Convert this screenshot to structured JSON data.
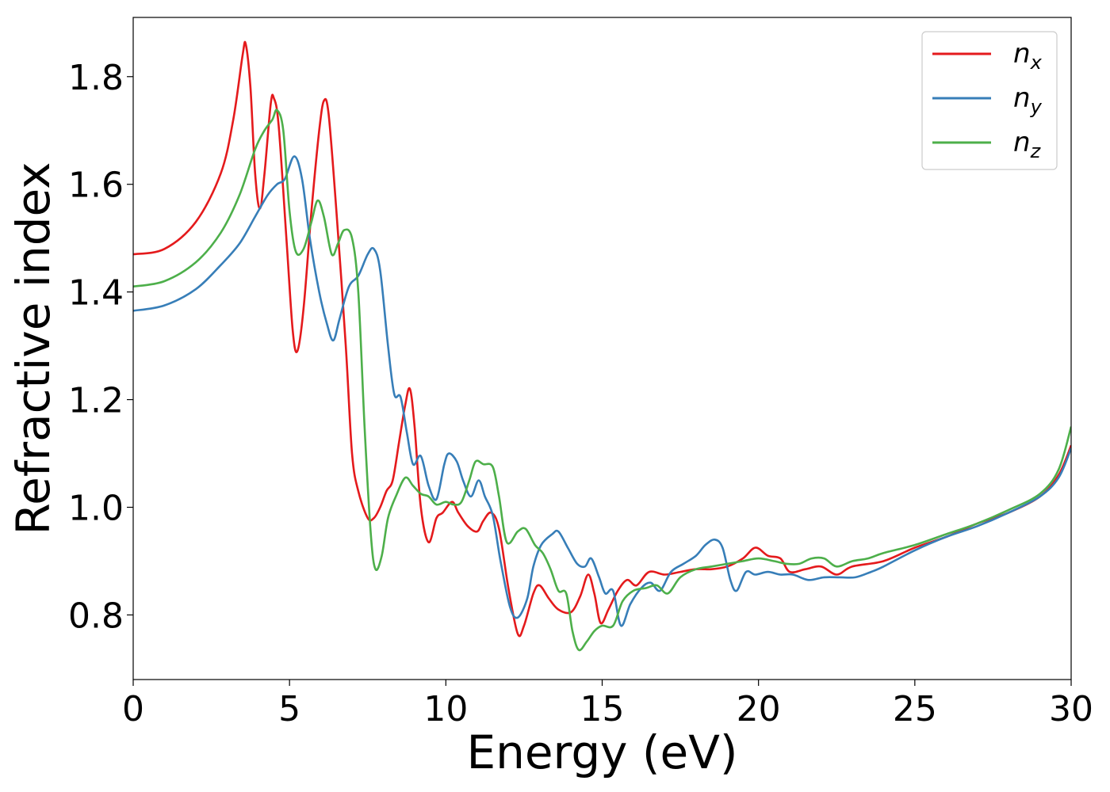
{
  "chart_data": {
    "type": "line",
    "title": "",
    "xlabel": "Energy (eV)",
    "ylabel": "Refractive index",
    "xlim": [
      0,
      30
    ],
    "ylim": [
      0.68,
      1.91
    ],
    "x_ticks": [
      0,
      5,
      10,
      15,
      20,
      25,
      30
    ],
    "y_ticks": [
      0.8,
      1.0,
      1.2,
      1.4,
      1.6,
      1.8
    ],
    "grid": false,
    "legend_position": "top-right",
    "series": [
      {
        "name": "n_x",
        "label_main": "n",
        "label_sub": "x",
        "color": "#e41a1c",
        "points": [
          [
            0,
            1.47
          ],
          [
            1,
            1.48
          ],
          [
            2,
            1.53
          ],
          [
            2.8,
            1.62
          ],
          [
            3.2,
            1.72
          ],
          [
            3.5,
            1.84
          ],
          [
            3.6,
            1.86
          ],
          [
            3.75,
            1.78
          ],
          [
            3.9,
            1.62
          ],
          [
            4.05,
            1.555
          ],
          [
            4.2,
            1.62
          ],
          [
            4.4,
            1.75
          ],
          [
            4.5,
            1.76
          ],
          [
            4.65,
            1.71
          ],
          [
            4.9,
            1.5
          ],
          [
            5.1,
            1.33
          ],
          [
            5.25,
            1.29
          ],
          [
            5.45,
            1.37
          ],
          [
            5.7,
            1.55
          ],
          [
            5.95,
            1.7
          ],
          [
            6.1,
            1.755
          ],
          [
            6.25,
            1.73
          ],
          [
            6.5,
            1.55
          ],
          [
            6.8,
            1.3
          ],
          [
            7.0,
            1.1
          ],
          [
            7.2,
            1.03
          ],
          [
            7.5,
            0.98
          ],
          [
            7.7,
            0.98
          ],
          [
            7.9,
            1.0
          ],
          [
            8.1,
            1.03
          ],
          [
            8.3,
            1.05
          ],
          [
            8.5,
            1.12
          ],
          [
            8.7,
            1.19
          ],
          [
            8.85,
            1.22
          ],
          [
            9.0,
            1.15
          ],
          [
            9.2,
            1.0
          ],
          [
            9.45,
            0.935
          ],
          [
            9.7,
            0.98
          ],
          [
            9.9,
            0.99
          ],
          [
            10.2,
            1.01
          ],
          [
            10.4,
            0.99
          ],
          [
            10.7,
            0.965
          ],
          [
            11.0,
            0.955
          ],
          [
            11.2,
            0.975
          ],
          [
            11.45,
            0.99
          ],
          [
            11.7,
            0.96
          ],
          [
            12.0,
            0.85
          ],
          [
            12.3,
            0.765
          ],
          [
            12.5,
            0.78
          ],
          [
            12.8,
            0.84
          ],
          [
            13.0,
            0.855
          ],
          [
            13.3,
            0.83
          ],
          [
            13.6,
            0.81
          ],
          [
            14.0,
            0.805
          ],
          [
            14.3,
            0.835
          ],
          [
            14.55,
            0.875
          ],
          [
            14.75,
            0.84
          ],
          [
            14.95,
            0.785
          ],
          [
            15.2,
            0.81
          ],
          [
            15.5,
            0.845
          ],
          [
            15.8,
            0.865
          ],
          [
            16.1,
            0.855
          ],
          [
            16.5,
            0.88
          ],
          [
            17,
            0.875
          ],
          [
            17.5,
            0.88
          ],
          [
            18,
            0.885
          ],
          [
            18.5,
            0.885
          ],
          [
            19,
            0.89
          ],
          [
            19.5,
            0.905
          ],
          [
            19.9,
            0.925
          ],
          [
            20.3,
            0.91
          ],
          [
            20.7,
            0.905
          ],
          [
            21.0,
            0.88
          ],
          [
            21.5,
            0.885
          ],
          [
            22.0,
            0.89
          ],
          [
            22.5,
            0.875
          ],
          [
            23.0,
            0.89
          ],
          [
            24,
            0.9
          ],
          [
            25,
            0.925
          ],
          [
            26,
            0.945
          ],
          [
            27,
            0.97
          ],
          [
            28,
            0.99
          ],
          [
            29,
            1.02
          ],
          [
            29.6,
            1.06
          ],
          [
            30,
            1.115
          ]
        ]
      },
      {
        "name": "n_y",
        "label_main": "n",
        "label_sub": "y",
        "color": "#377eb8",
        "points": [
          [
            0,
            1.365
          ],
          [
            1,
            1.375
          ],
          [
            2,
            1.405
          ],
          [
            2.8,
            1.45
          ],
          [
            3.4,
            1.49
          ],
          [
            3.9,
            1.54
          ],
          [
            4.3,
            1.58
          ],
          [
            4.6,
            1.6
          ],
          [
            4.85,
            1.61
          ],
          [
            5.15,
            1.652
          ],
          [
            5.4,
            1.61
          ],
          [
            5.65,
            1.5
          ],
          [
            5.95,
            1.4
          ],
          [
            6.2,
            1.34
          ],
          [
            6.4,
            1.31
          ],
          [
            6.6,
            1.35
          ],
          [
            6.9,
            1.41
          ],
          [
            7.2,
            1.43
          ],
          [
            7.5,
            1.47
          ],
          [
            7.7,
            1.48
          ],
          [
            7.9,
            1.44
          ],
          [
            8.15,
            1.3
          ],
          [
            8.35,
            1.21
          ],
          [
            8.55,
            1.205
          ],
          [
            8.75,
            1.14
          ],
          [
            8.95,
            1.08
          ],
          [
            9.2,
            1.095
          ],
          [
            9.45,
            1.04
          ],
          [
            9.7,
            1.015
          ],
          [
            9.95,
            1.08
          ],
          [
            10.1,
            1.1
          ],
          [
            10.35,
            1.085
          ],
          [
            10.55,
            1.05
          ],
          [
            10.8,
            1.02
          ],
          [
            11.05,
            1.05
          ],
          [
            11.25,
            1.02
          ],
          [
            11.5,
            0.985
          ],
          [
            11.75,
            0.9
          ],
          [
            12.05,
            0.815
          ],
          [
            12.3,
            0.795
          ],
          [
            12.6,
            0.83
          ],
          [
            12.8,
            0.89
          ],
          [
            13.05,
            0.93
          ],
          [
            13.4,
            0.95
          ],
          [
            13.6,
            0.955
          ],
          [
            13.9,
            0.925
          ],
          [
            14.2,
            0.895
          ],
          [
            14.45,
            0.89
          ],
          [
            14.65,
            0.905
          ],
          [
            14.9,
            0.87
          ],
          [
            15.1,
            0.84
          ],
          [
            15.35,
            0.845
          ],
          [
            15.6,
            0.78
          ],
          [
            15.9,
            0.82
          ],
          [
            16.25,
            0.85
          ],
          [
            16.55,
            0.86
          ],
          [
            16.85,
            0.845
          ],
          [
            17.2,
            0.88
          ],
          [
            17.6,
            0.895
          ],
          [
            18.0,
            0.91
          ],
          [
            18.3,
            0.93
          ],
          [
            18.6,
            0.94
          ],
          [
            18.85,
            0.925
          ],
          [
            19.1,
            0.865
          ],
          [
            19.3,
            0.845
          ],
          [
            19.6,
            0.88
          ],
          [
            19.9,
            0.875
          ],
          [
            20.3,
            0.88
          ],
          [
            20.7,
            0.875
          ],
          [
            21.1,
            0.875
          ],
          [
            21.6,
            0.865
          ],
          [
            22.1,
            0.87
          ],
          [
            22.6,
            0.87
          ],
          [
            23.1,
            0.87
          ],
          [
            23.6,
            0.88
          ],
          [
            24,
            0.89
          ],
          [
            25,
            0.92
          ],
          [
            26,
            0.945
          ],
          [
            27,
            0.965
          ],
          [
            28,
            0.99
          ],
          [
            29,
            1.02
          ],
          [
            29.6,
            1.055
          ],
          [
            30,
            1.11
          ]
        ]
      },
      {
        "name": "n_z",
        "label_main": "n",
        "label_sub": "z",
        "color": "#4daf4a",
        "points": [
          [
            0,
            1.41
          ],
          [
            1,
            1.42
          ],
          [
            2,
            1.455
          ],
          [
            2.8,
            1.51
          ],
          [
            3.4,
            1.58
          ],
          [
            3.9,
            1.665
          ],
          [
            4.2,
            1.7
          ],
          [
            4.45,
            1.72
          ],
          [
            4.6,
            1.738
          ],
          [
            4.8,
            1.7
          ],
          [
            5.0,
            1.55
          ],
          [
            5.2,
            1.475
          ],
          [
            5.45,
            1.48
          ],
          [
            5.7,
            1.53
          ],
          [
            5.9,
            1.57
          ],
          [
            6.1,
            1.54
          ],
          [
            6.35,
            1.47
          ],
          [
            6.55,
            1.49
          ],
          [
            6.75,
            1.515
          ],
          [
            7.0,
            1.5
          ],
          [
            7.2,
            1.4
          ],
          [
            7.4,
            1.15
          ],
          [
            7.6,
            0.95
          ],
          [
            7.75,
            0.885
          ],
          [
            7.95,
            0.91
          ],
          [
            8.15,
            0.98
          ],
          [
            8.4,
            1.02
          ],
          [
            8.7,
            1.055
          ],
          [
            8.95,
            1.04
          ],
          [
            9.2,
            1.025
          ],
          [
            9.45,
            1.02
          ],
          [
            9.7,
            1.005
          ],
          [
            10.0,
            1.01
          ],
          [
            10.25,
            1.005
          ],
          [
            10.5,
            1.01
          ],
          [
            10.75,
            1.05
          ],
          [
            10.95,
            1.085
          ],
          [
            11.2,
            1.08
          ],
          [
            11.5,
            1.075
          ],
          [
            11.7,
            1.02
          ],
          [
            11.95,
            0.935
          ],
          [
            12.3,
            0.955
          ],
          [
            12.55,
            0.96
          ],
          [
            12.85,
            0.93
          ],
          [
            13.1,
            0.915
          ],
          [
            13.35,
            0.885
          ],
          [
            13.6,
            0.845
          ],
          [
            13.85,
            0.84
          ],
          [
            14.05,
            0.77
          ],
          [
            14.25,
            0.735
          ],
          [
            14.5,
            0.75
          ],
          [
            14.75,
            0.77
          ],
          [
            15.0,
            0.78
          ],
          [
            15.35,
            0.78
          ],
          [
            15.65,
            0.825
          ],
          [
            16.0,
            0.845
          ],
          [
            16.4,
            0.85
          ],
          [
            16.75,
            0.855
          ],
          [
            17.1,
            0.84
          ],
          [
            17.5,
            0.87
          ],
          [
            18.0,
            0.885
          ],
          [
            18.5,
            0.89
          ],
          [
            19.0,
            0.895
          ],
          [
            19.5,
            0.9
          ],
          [
            20.0,
            0.905
          ],
          [
            20.5,
            0.9
          ],
          [
            20.9,
            0.895
          ],
          [
            21.3,
            0.895
          ],
          [
            21.7,
            0.905
          ],
          [
            22.1,
            0.905
          ],
          [
            22.5,
            0.89
          ],
          [
            23.0,
            0.9
          ],
          [
            23.5,
            0.905
          ],
          [
            24,
            0.915
          ],
          [
            25,
            0.93
          ],
          [
            26,
            0.95
          ],
          [
            27,
            0.97
          ],
          [
            28,
            0.995
          ],
          [
            29,
            1.025
          ],
          [
            29.6,
            1.07
          ],
          [
            30,
            1.15
          ]
        ]
      }
    ]
  }
}
